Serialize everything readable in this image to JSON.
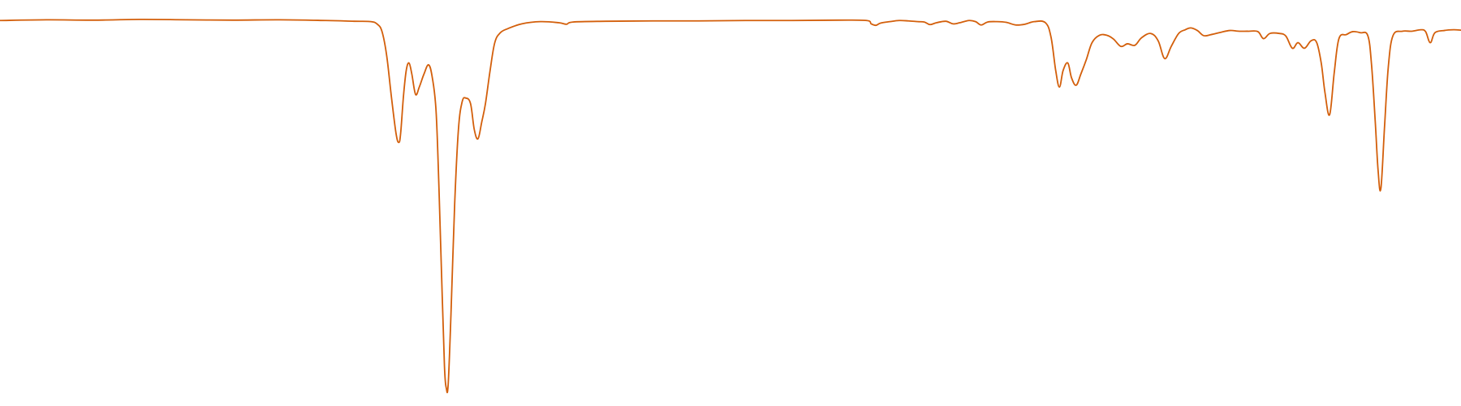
{
  "chart_data": {
    "type": "line",
    "title": "",
    "xlabel": "",
    "ylabel": "",
    "grid": false,
    "legend": "none",
    "xlim": [
      0,
      1568
    ],
    "ylim": [
      0,
      100
    ],
    "series": [
      {
        "color": "#d35f0b",
        "points": [
          [
            0,
            99.5
          ],
          [
            50,
            99.7
          ],
          [
            100,
            99.6
          ],
          [
            150,
            99.8
          ],
          [
            200,
            99.7
          ],
          [
            250,
            99.6
          ],
          [
            300,
            99.7
          ],
          [
            350,
            99.5
          ],
          [
            380,
            99.3
          ],
          [
            398,
            99.2
          ],
          [
            405,
            98.5
          ],
          [
            410,
            96.5
          ],
          [
            415,
            90
          ],
          [
            420,
            79
          ],
          [
            425,
            69
          ],
          [
            428,
            66.5
          ],
          [
            430,
            69
          ],
          [
            433,
            79
          ],
          [
            436,
            86
          ],
          [
            439,
            88
          ],
          [
            442,
            85
          ],
          [
            446,
            79.5
          ],
          [
            450,
            81.5
          ],
          [
            455,
            85
          ],
          [
            460,
            87.5
          ],
          [
            464,
            84
          ],
          [
            468,
            75
          ],
          [
            471,
            55
          ],
          [
            474,
            30
          ],
          [
            477,
            6
          ],
          [
            479,
            0
          ],
          [
            481,
            1
          ],
          [
            484,
            20
          ],
          [
            488,
            50
          ],
          [
            492,
            70
          ],
          [
            496,
            77.5
          ],
          [
            500,
            78.5
          ],
          [
            505,
            77
          ],
          [
            509,
            70
          ],
          [
            513,
            67.5
          ],
          [
            517,
            72
          ],
          [
            521,
            77
          ],
          [
            526,
            86
          ],
          [
            531,
            93.5
          ],
          [
            537,
            96.2
          ],
          [
            545,
            97.3
          ],
          [
            560,
            98.6
          ],
          [
            580,
            99.2
          ],
          [
            600,
            98.9
          ],
          [
            608,
            98.5
          ],
          [
            615,
            99.1
          ],
          [
            650,
            99.3
          ],
          [
            700,
            99.4
          ],
          [
            750,
            99.4
          ],
          [
            800,
            99.5
          ],
          [
            850,
            99.5
          ],
          [
            900,
            99.6
          ],
          [
            930,
            99.5
          ],
          [
            935,
            98.6
          ],
          [
            940,
            98.2
          ],
          [
            945,
            98.8
          ],
          [
            955,
            99.2
          ],
          [
            965,
            99.5
          ],
          [
            975,
            99.4
          ],
          [
            985,
            99.2
          ],
          [
            992,
            99.1
          ],
          [
            998,
            98.4
          ],
          [
            1005,
            98.9
          ],
          [
            1015,
            99.3
          ],
          [
            1023,
            98.6
          ],
          [
            1030,
            98.9
          ],
          [
            1040,
            99.5
          ],
          [
            1047,
            99.2
          ],
          [
            1053,
            98.3
          ],
          [
            1060,
            99.1
          ],
          [
            1070,
            99.2
          ],
          [
            1080,
            99
          ],
          [
            1090,
            98.3
          ],
          [
            1100,
            98.5
          ],
          [
            1110,
            99.2
          ],
          [
            1122,
            98.9
          ],
          [
            1128,
            95
          ],
          [
            1133,
            86
          ],
          [
            1137,
            81.5
          ],
          [
            1141,
            86
          ],
          [
            1146,
            88
          ],
          [
            1150,
            84
          ],
          [
            1155,
            82
          ],
          [
            1160,
            85
          ],
          [
            1166,
            89
          ],
          [
            1172,
            93.5
          ],
          [
            1180,
            95.5
          ],
          [
            1188,
            95.5
          ],
          [
            1195,
            94.5
          ],
          [
            1203,
            92.5
          ],
          [
            1210,
            93.2
          ],
          [
            1218,
            92.8
          ],
          [
            1225,
            94.8
          ],
          [
            1235,
            96
          ],
          [
            1243,
            94
          ],
          [
            1250,
            89.2
          ],
          [
            1257,
            92.5
          ],
          [
            1265,
            96
          ],
          [
            1272,
            97
          ],
          [
            1278,
            97.5
          ],
          [
            1285,
            96.8
          ],
          [
            1292,
            95.4
          ],
          [
            1300,
            95.7
          ],
          [
            1310,
            96.3
          ],
          [
            1320,
            96.8
          ],
          [
            1330,
            96.6
          ],
          [
            1340,
            96.6
          ],
          [
            1350,
            96.5
          ],
          [
            1356,
            94.6
          ],
          [
            1363,
            96
          ],
          [
            1373,
            96
          ],
          [
            1380,
            95.3
          ],
          [
            1387,
            92
          ],
          [
            1393,
            93.5
          ],
          [
            1400,
            92
          ],
          [
            1407,
            94
          ],
          [
            1413,
            93.6
          ],
          [
            1418,
            88
          ],
          [
            1422,
            80
          ],
          [
            1427,
            74
          ],
          [
            1432,
            85.5
          ],
          [
            1437,
            94.6
          ],
          [
            1445,
            95.7
          ],
          [
            1452,
            96.5
          ],
          [
            1460,
            96.2
          ],
          [
            1468,
            95.4
          ],
          [
            1472,
            87.5
          ],
          [
            1476,
            72
          ],
          [
            1479,
            59
          ],
          [
            1482,
            54
          ],
          [
            1486,
            71
          ],
          [
            1490,
            87
          ],
          [
            1495,
            95.4
          ],
          [
            1505,
            96.6
          ],
          [
            1515,
            96.6
          ],
          [
            1525,
            97
          ],
          [
            1530,
            96.5
          ],
          [
            1535,
            93.5
          ],
          [
            1540,
            96.2
          ],
          [
            1550,
            96.8
          ],
          [
            1560,
            97
          ],
          [
            1568,
            96.9
          ]
        ]
      }
    ]
  }
}
